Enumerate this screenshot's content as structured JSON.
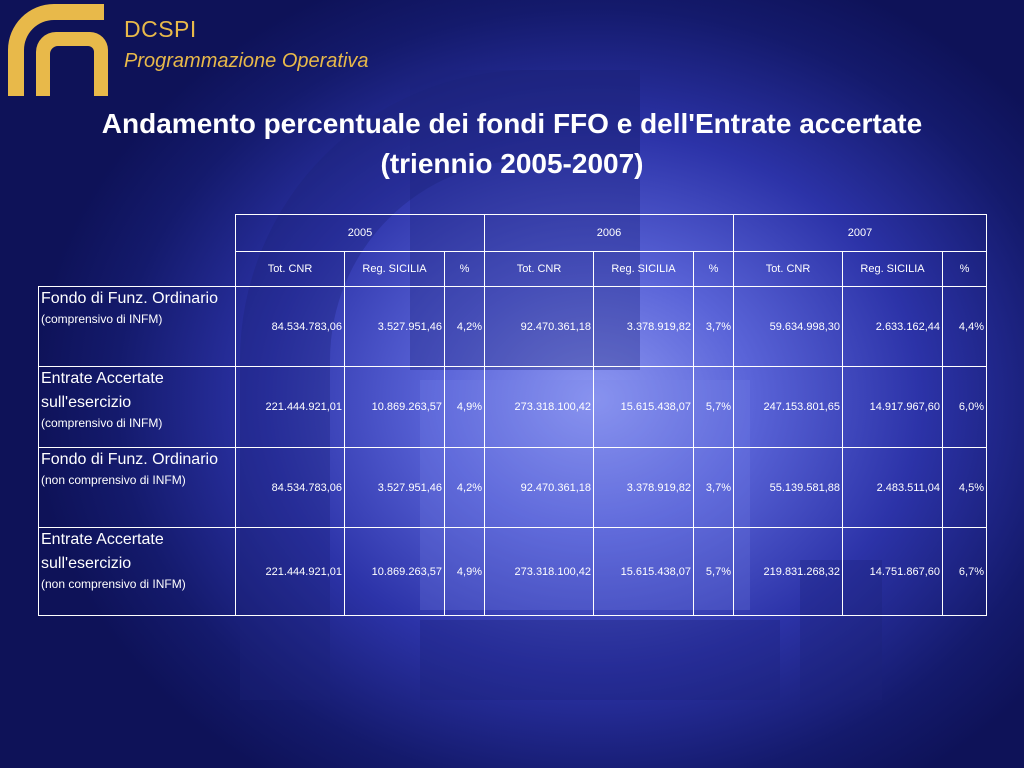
{
  "header": {
    "brand": "DCSPI",
    "subtitle": "Programmazione Operativa"
  },
  "title": {
    "line1": "Andamento percentuale dei fondi FFO e dell'Entrate accertate",
    "line2": "(triennio 2005-2007)"
  },
  "table": {
    "years": [
      "2005",
      "2006",
      "2007"
    ],
    "subheaders": [
      "Tot. CNR",
      "Reg. SICILIA",
      "%"
    ],
    "rows": [
      {
        "label_main": "Fondo di Funz. Ordinario",
        "label_sub": "(comprensivo di INFM)",
        "values": [
          "84.534.783,06",
          "3.527.951,46",
          "4,2%",
          "92.470.361,18",
          "3.378.919,82",
          "3,7%",
          "59.634.998,30",
          "2.633.162,44",
          "4,4%"
        ]
      },
      {
        "label_main": "Entrate Accertate sull'esercizio",
        "label_sub": "(comprensivo di INFM)",
        "values": [
          "221.444.921,01",
          "10.869.263,57",
          "4,9%",
          "273.318.100,42",
          "15.615.438,07",
          "5,7%",
          "247.153.801,65",
          "14.917.967,60",
          "6,0%"
        ]
      },
      {
        "label_main": "Fondo di Funz. Ordinario",
        "label_sub": "(non comprensivo di INFM)",
        "values": [
          "84.534.783,06",
          "3.527.951,46",
          "4,2%",
          "92.470.361,18",
          "3.378.919,82",
          "3,7%",
          "55.139.581,88",
          "2.483.511,04",
          "4,5%"
        ]
      },
      {
        "label_main": "Entrate Accertate sull'esercizio",
        "label_sub": "(non comprensivo di INFM)",
        "values": [
          "221.444.921,01",
          "10.869.263,57",
          "4,9%",
          "273.318.100,42",
          "15.615.438,07",
          "5,7%",
          "219.831.268,32",
          "14.751.867,60",
          "6,7%"
        ]
      }
    ]
  },
  "colors": {
    "accent_gold": "#e8b94a",
    "background_dark": "#141a6c",
    "background_light": "#8e98f2"
  }
}
